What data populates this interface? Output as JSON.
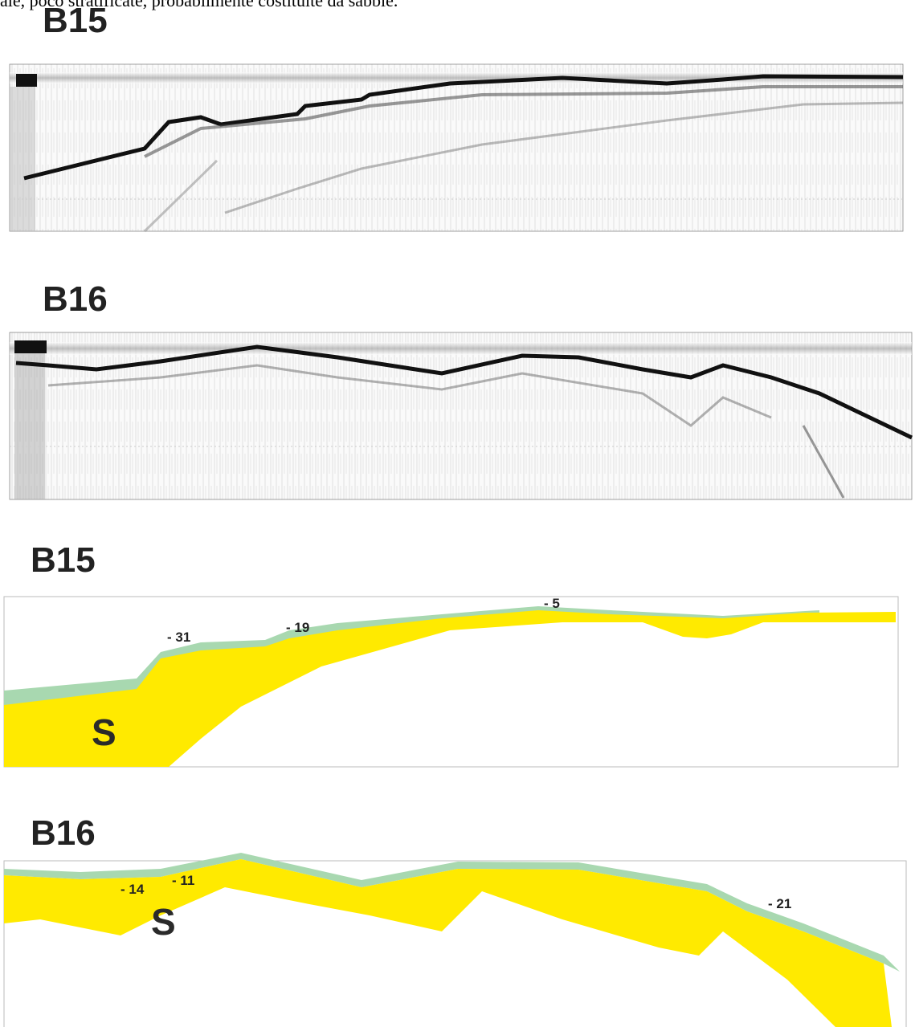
{
  "caption_fragment": "ale, poco stratificate, probabilmente costituite da sabbie.",
  "seismic_profiles": [
    {
      "title": "B15"
    },
    {
      "title": "B16"
    }
  ],
  "interpretations": [
    {
      "title": "B15",
      "depth_labels": [
        "- 31",
        "- 19",
        "- 5"
      ],
      "unit_label": "S"
    },
    {
      "title": "B16",
      "depth_labels": [
        "- 14",
        "- 11",
        "- 21"
      ],
      "unit_label": "S"
    }
  ]
}
